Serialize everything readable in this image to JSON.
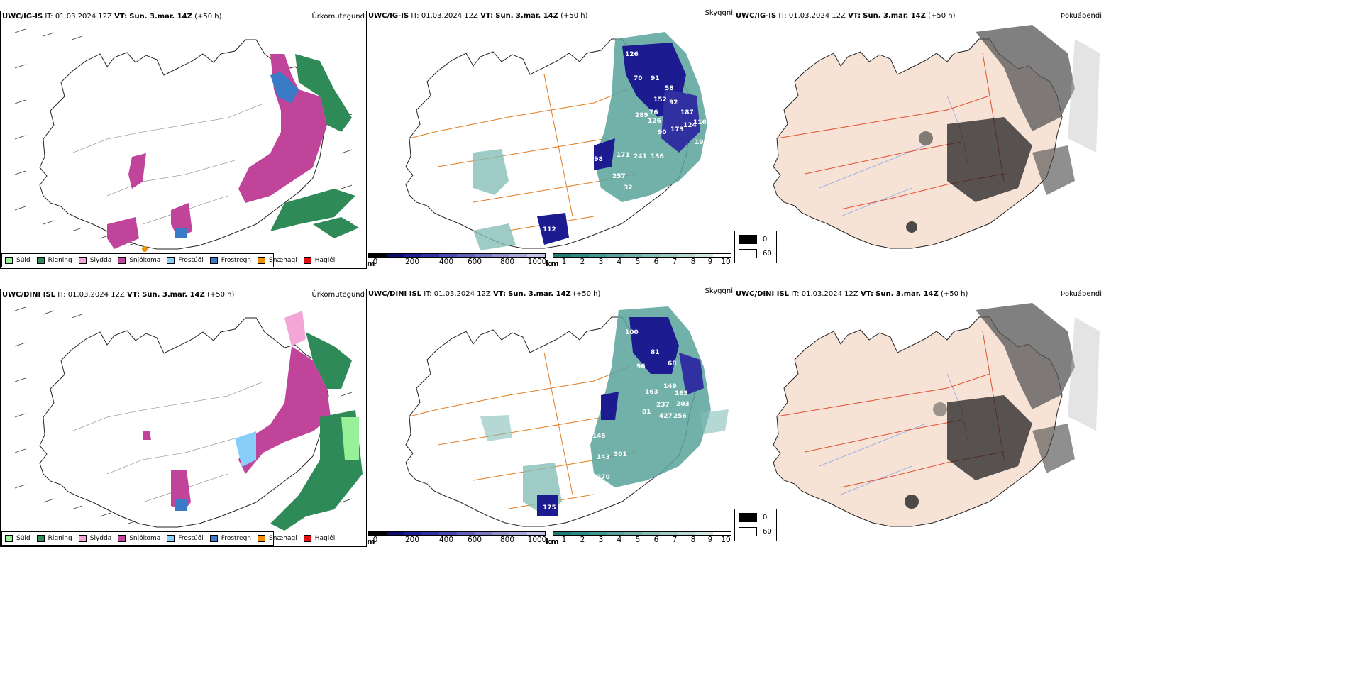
{
  "panels": [
    {
      "model": "UWC/IG-IS",
      "it_label": "IT:",
      "it_value": "01.03.2024 12Z",
      "vt_label": "VT:",
      "vt_value": "Sun. 3.mar. 14Z",
      "lead": "(+50 h)",
      "field": "Úrkomutegund"
    },
    {
      "model": "UWC/IG-IS",
      "it_label": "IT:",
      "it_value": "01.03.2024 12Z",
      "vt_label": "VT:",
      "vt_value": "Sun. 3.mar. 14Z",
      "lead": "(+50 h)",
      "field": "Skyggni"
    },
    {
      "model": "UWC/IG-IS",
      "it_label": "IT:",
      "it_value": "01.03.2024 12Z",
      "vt_label": "VT:",
      "vt_value": "Sun. 3.mar. 14Z",
      "lead": "(+50 h)",
      "field": "Þokuábendi"
    },
    {
      "model": "UWC/DINI ISL",
      "it_label": "IT:",
      "it_value": "01.03.2024 12Z",
      "vt_label": "VT:",
      "vt_value": "Sun. 3.mar. 14Z",
      "lead": "(+50 h)",
      "field": "Úrkomutegund"
    },
    {
      "model": "UWC/DINI ISL",
      "it_label": "IT:",
      "it_value": "01.03.2024 12Z",
      "vt_label": "VT:",
      "vt_value": "Sun. 3.mar. 14Z",
      "lead": "(+50 h)",
      "field": "Skyggni"
    },
    {
      "model": "UWC/DINI ISL",
      "it_label": "IT:",
      "it_value": "01.03.2024 12Z",
      "vt_label": "VT:",
      "vt_value": "Sun. 3.mar. 14Z",
      "lead": "(+50 h)",
      "field": "Þokuábendi"
    }
  ],
  "precip_legend": [
    {
      "label": "Súld",
      "color": "#98f098"
    },
    {
      "label": "Rigning",
      "color": "#2e8b57"
    },
    {
      "label": "Slydda",
      "color": "#f4a6d7"
    },
    {
      "label": "Snjókoma",
      "color": "#c0449a"
    },
    {
      "label": "Frostúði",
      "color": "#87cefa"
    },
    {
      "label": "Frostregn",
      "color": "#3a7bc8"
    },
    {
      "label": "Snæhagl",
      "color": "#f0900a"
    },
    {
      "label": "Haglél",
      "color": "#e01010"
    }
  ],
  "cloud_base_bar": {
    "unit": "m",
    "ticks": [
      "0",
      "200",
      "400",
      "600",
      "800",
      "1000"
    ],
    "colors": [
      "#000000",
      "#0c0c6e",
      "#1c1c90",
      "#3030a0",
      "#4848b0",
      "#6060b8",
      "#7878c4",
      "#9090cc",
      "#a8a8d8",
      "#c4c4e6"
    ]
  },
  "visibility_bar": {
    "unit": "km",
    "ticks": [
      "1",
      "2",
      "3",
      "4",
      "5",
      "6",
      "7",
      "8",
      "9",
      "10"
    ],
    "colors": [
      "#1f7a73",
      "#2f8a83",
      "#42978f",
      "#58a39b",
      "#6eb0a8",
      "#86beb7",
      "#9ecbc5",
      "#b8d9d4",
      "#d2e8e5",
      "#ffffff"
    ]
  },
  "fog_legend": [
    {
      "label": "0",
      "color": "#000000"
    },
    {
      "label": "60",
      "color": "#ffffff"
    }
  ],
  "top_ceiling_labels": [
    "126",
    "70",
    "91",
    "58",
    "152",
    "92",
    "76",
    "289",
    "126",
    "187",
    "116",
    "90",
    "173",
    "124",
    "19",
    "136",
    "241",
    "171",
    "198",
    "257",
    "32",
    "112"
  ],
  "bottom_ceiling_labels": [
    "100",
    "81",
    "96",
    "68",
    "149",
    "163",
    "163",
    "237",
    "203",
    "427",
    "256",
    "81",
    "143",
    "301",
    "145",
    "270",
    "175"
  ]
}
